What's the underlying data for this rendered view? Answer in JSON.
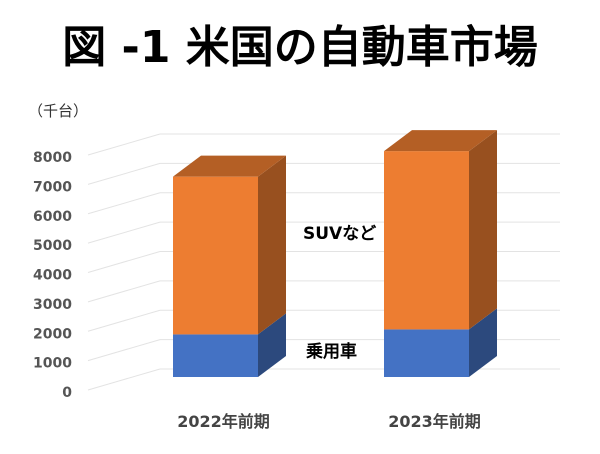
{
  "chart_data": {
    "type": "bar",
    "stacked": true,
    "style": "3d",
    "title": "図 -1 米国の自動車市場",
    "unit_label": "（千台）",
    "categories": [
      "2022年前期",
      "2023年前期"
    ],
    "series": [
      {
        "name": "乗用車",
        "values": [
          1450,
          1620
        ],
        "color": "#4472c4"
      },
      {
        "name": "SUVなど",
        "values": [
          5370,
          6070
        ],
        "color": "#ed7d31"
      }
    ],
    "ylim": [
      0,
      8000
    ],
    "yticks": [
      "0",
      "1000",
      "2000",
      "3000",
      "4000",
      "5000",
      "6000",
      "7000",
      "8000"
    ],
    "grid": true,
    "legend": "inline labels between bars"
  }
}
